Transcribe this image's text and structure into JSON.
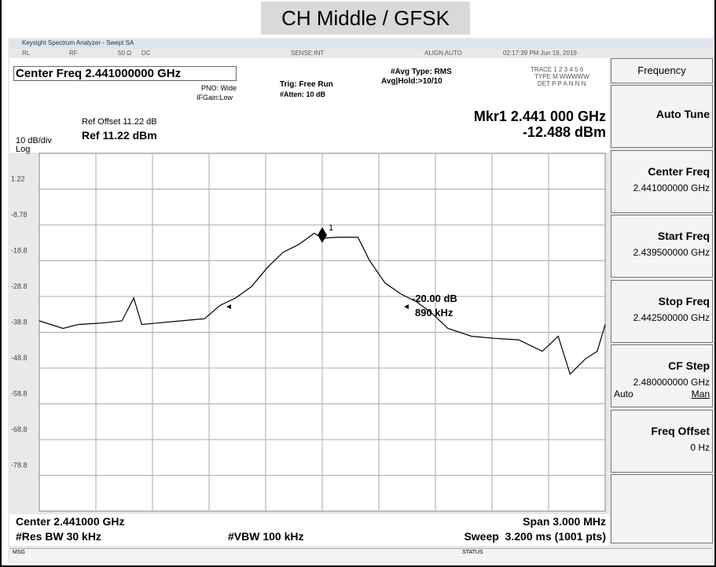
{
  "title": "CH Middle / GFSK",
  "window_title": "Keysight Spectrum Analyzer - Swept SA",
  "status_bar": [
    "RL",
    "RF",
    "50 Ω",
    "DC",
    "SENSE:INT",
    "ALIGN AUTO",
    "02:17:39 PM Jun 19, 2019"
  ],
  "header": {
    "center_freq": "Center Freq 2.441000000 GHz",
    "pno": "PNO: Wide",
    "ifgain": "IFGain:Low",
    "trig": "Trig: Free Run",
    "atten": "#Atten: 10 dB",
    "avg_type": "#Avg Type: RMS",
    "avg_hold": "Avg|Hold:>10/10",
    "trace": "TRACE 1 2 3 4 5 6",
    "type": "TYPE M WWWWW",
    "det": "DET P P A N N N"
  },
  "marker_readout": {
    "freq": "Mkr1 2.441 000 GHz",
    "level": "-12.488 dBm"
  },
  "ref": {
    "offset": "Ref Offset 11.22 dB",
    "level": "Ref 11.22 dBm",
    "scale": "10 dB/div",
    "mode": "Log"
  },
  "plot": {
    "ylim": [
      -88.78,
      11.22
    ],
    "xlim": [
      2.4395,
      2.4425
    ],
    "yticks": [
      1.22,
      -8.78,
      {
        "value": -18.78,
        "label": "-18.8"
      },
      {
        "value": -28.78,
        "label": "-28.8"
      },
      {
        "value": -38.78,
        "label": "-38.8"
      },
      {
        "value": -48.78,
        "label": "-48.8"
      },
      {
        "value": -58.78,
        "label": "-58.8"
      },
      {
        "value": -68.78,
        "label": "-68.8"
      },
      {
        "value": -78.78,
        "label": "-78.8"
      }
    ],
    "trace": {
      "color": "#000000",
      "x": [
        2.4395,
        2.439626,
        2.439707,
        2.439833,
        2.439938,
        2.440001,
        2.440043,
        2.440124,
        2.44025,
        2.440376,
        2.440457,
        2.440541,
        2.440625,
        2.440709,
        2.440793,
        2.440874,
        2.440958,
        2.441,
        2.441084,
        2.441189,
        2.441249,
        2.441333,
        2.441417,
        2.441501,
        2.441582,
        2.441666,
        2.441792,
        2.441918,
        2.442041,
        2.442167,
        2.442251,
        2.442314,
        2.442395,
        2.442458,
        2.4425
      ],
      "values": [
        -35.6,
        -37.7,
        -36.6,
        -36.2,
        -35.6,
        -29.2,
        -36.6,
        -36.2,
        -35.6,
        -35.0,
        -31.3,
        -29.2,
        -26.0,
        -20.7,
        -16.4,
        -14.3,
        -11.1,
        -12.5,
        -12.2,
        -12.2,
        -18.6,
        -25.0,
        -28.1,
        -30.3,
        -33.5,
        -37.7,
        -39.9,
        -40.5,
        -40.9,
        -44.1,
        -39.9,
        -50.5,
        -46.2,
        -44.1,
        -36.6
      ]
    },
    "marker": {
      "label": "1",
      "x": 2.441,
      "y": -12.488
    },
    "annotations": [
      "-20.00 dB",
      "890 kHz"
    ]
  },
  "footer": {
    "center": "Center 2.441000 GHz",
    "span": "Span 3.000 MHz",
    "rbw": "#Res BW 30 kHz",
    "vbw": "#VBW 100 kHz",
    "sweep": "Sweep  3.200 ms (1001 pts)",
    "msg": "MSG",
    "status": "STATUS"
  },
  "softkeys": {
    "title": "Frequency",
    "keys": [
      {
        "label": "Auto Tune"
      },
      {
        "label": "Center Freq",
        "value": "2.441000000 GHz"
      },
      {
        "label": "Start Freq",
        "value": "2.439500000 GHz"
      },
      {
        "label": "Stop Freq",
        "value": "2.442500000 GHz"
      },
      {
        "label": "CF Step",
        "value": "2.480000000 GHz",
        "options": [
          "Auto",
          "Man"
        ]
      },
      {
        "label": "Freq Offset",
        "value": "0 Hz"
      }
    ]
  }
}
